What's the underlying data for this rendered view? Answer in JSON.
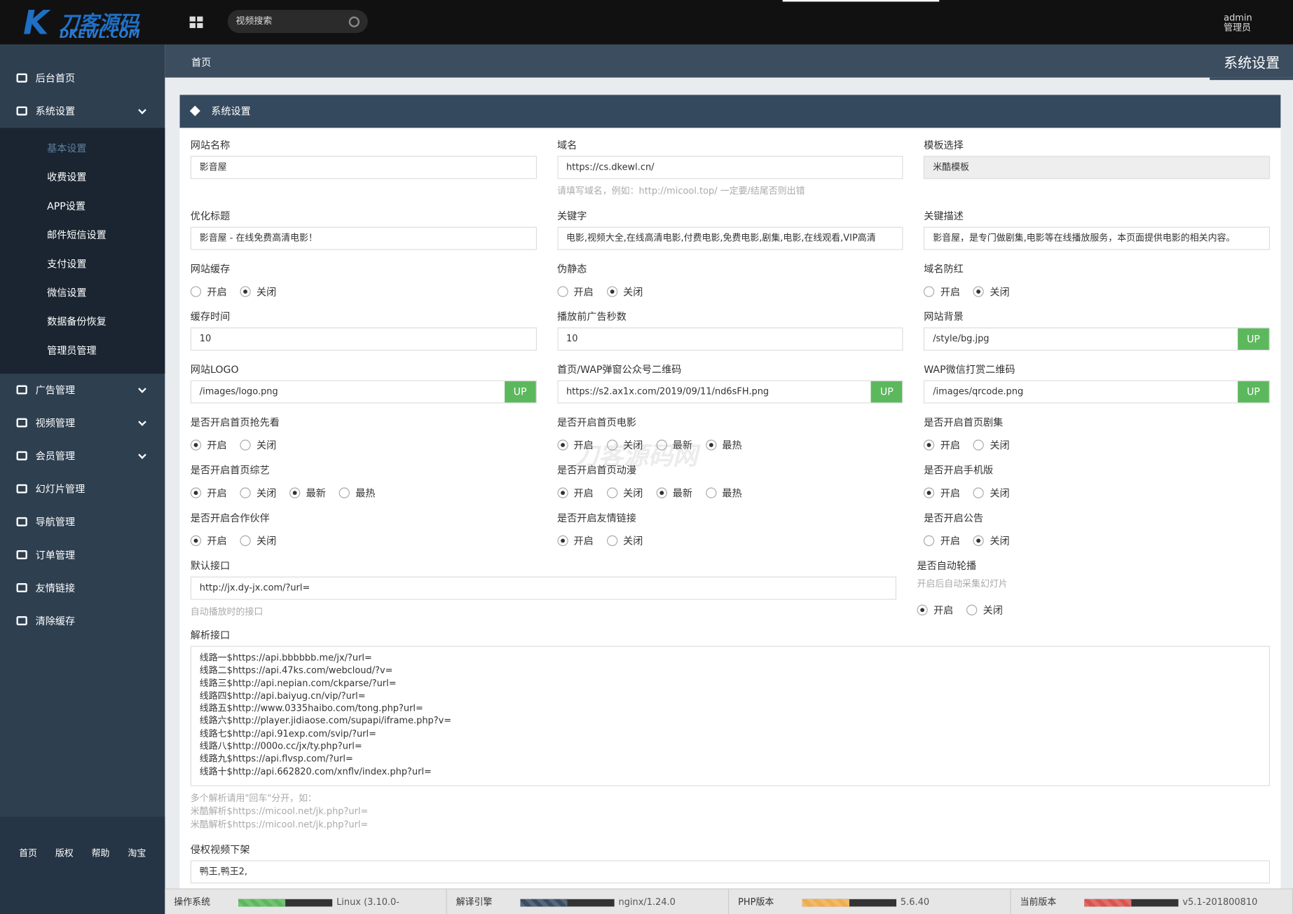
{
  "logo": {
    "text": "刀客源码",
    "sub": "DKEWL.COM"
  },
  "search_placeholder": "视频搜索",
  "user": {
    "name": "admin",
    "role": "管理员"
  },
  "sidebar": {
    "menu": [
      {
        "label": "后台首页"
      },
      {
        "label": "系统设置",
        "expanded": true,
        "children": [
          {
            "label": "基本设置",
            "active": true
          },
          {
            "label": "收费设置"
          },
          {
            "label": "APP设置"
          },
          {
            "label": "邮件短信设置"
          },
          {
            "label": "支付设置"
          },
          {
            "label": "微信设置"
          },
          {
            "label": "数据备份恢复"
          },
          {
            "label": "管理员管理"
          }
        ]
      },
      {
        "label": "广告管理",
        "expandable": true
      },
      {
        "label": "视频管理",
        "expandable": true
      },
      {
        "label": "会员管理",
        "expandable": true
      },
      {
        "label": "幻灯片管理"
      },
      {
        "label": "导航管理"
      },
      {
        "label": "订单管理"
      },
      {
        "label": "友情链接"
      },
      {
        "label": "清除缓存"
      }
    ],
    "footer_links": [
      "首页",
      "版权",
      "帮助",
      "淘宝"
    ]
  },
  "breadcrumb": "首页",
  "page_title": "系统设置",
  "panel_title": "系统设置",
  "watermark": "刀客源码网",
  "rows": [
    [
      {
        "label": "网站名称",
        "kind": "text",
        "value": "影音屋"
      },
      {
        "label": "域名",
        "kind": "text",
        "value": "https://cs.dkewl.cn/",
        "hint": "请填写域名，例如：http://micool.top/ 一定要/结尾否则出错"
      },
      {
        "label": "模板选择",
        "kind": "select",
        "value": "米酷模板"
      }
    ],
    [
      {
        "label": "优化标题",
        "kind": "text",
        "value": "影音屋 - 在线免费高清电影！"
      },
      {
        "label": "关键字",
        "kind": "text",
        "value": "电影,视频大全,在线高清电影,付费电影,免费电影,剧集,电影,在线观看,VIP高清"
      },
      {
        "label": "关键描述",
        "kind": "text",
        "value": "影音屋，是专门做剧集,电影等在线播放服务，本页面提供电影的相关内容。"
      }
    ],
    [
      {
        "label": "网站缓存",
        "kind": "radio",
        "options": [
          {
            "label": "开启",
            "checked": false
          },
          {
            "label": "关闭",
            "checked": true
          }
        ]
      },
      {
        "label": "伪静态",
        "kind": "radio",
        "options": [
          {
            "label": "开启",
            "checked": false
          },
          {
            "label": "关闭",
            "checked": true
          }
        ]
      },
      {
        "label": "域名防红",
        "kind": "radio",
        "options": [
          {
            "label": "开启",
            "checked": false
          },
          {
            "label": "关闭",
            "checked": true
          }
        ]
      }
    ],
    [
      {
        "label": "缓存时间",
        "kind": "text",
        "value": "10"
      },
      {
        "label": "播放前广告秒数",
        "kind": "text",
        "value": "10"
      },
      {
        "label": "网站背景",
        "kind": "text",
        "value": "/style/bg.jpg",
        "button": "UP"
      }
    ],
    [
      {
        "label": "网站LOGO",
        "kind": "text",
        "value": "/images/logo.png",
        "button": "UP"
      },
      {
        "label": "首页/WAP弹窗公众号二维码",
        "kind": "text",
        "value": "https://s2.ax1x.com/2019/09/11/nd6sFH.png",
        "button": "UP"
      },
      {
        "label": "WAP微信打赏二维码",
        "kind": "text",
        "value": "/images/qrcode.png",
        "button": "UP"
      }
    ],
    [
      {
        "label": "是否开启首页抢先看",
        "kind": "radio",
        "options": [
          {
            "label": "开启",
            "checked": true
          },
          {
            "label": "关闭",
            "checked": false
          }
        ]
      },
      {
        "label": "是否开启首页电影",
        "kind": "radio",
        "options": [
          {
            "label": "开启",
            "checked": true
          },
          {
            "label": "关闭",
            "checked": false
          },
          {
            "label": "最新",
            "checked": false
          },
          {
            "label": "最热",
            "checked": true
          }
        ]
      },
      {
        "label": "是否开启首页剧集",
        "kind": "radio",
        "options": [
          {
            "label": "开启",
            "checked": true
          },
          {
            "label": "关闭",
            "checked": false
          }
        ]
      }
    ],
    [
      {
        "label": "是否开启首页综艺",
        "kind": "radio",
        "options": [
          {
            "label": "开启",
            "checked": true
          },
          {
            "label": "关闭",
            "checked": false
          },
          {
            "label": "最新",
            "checked": true
          },
          {
            "label": "最热",
            "checked": false
          }
        ]
      },
      {
        "label": "是否开启首页动漫",
        "kind": "radio",
        "options": [
          {
            "label": "开启",
            "checked": true
          },
          {
            "label": "关闭",
            "checked": false
          },
          {
            "label": "最新",
            "checked": true
          },
          {
            "label": "最热",
            "checked": false
          }
        ]
      },
      {
        "label": "是否开启手机版",
        "kind": "radio",
        "options": [
          {
            "label": "开启",
            "checked": true
          },
          {
            "label": "关闭",
            "checked": false
          }
        ]
      }
    ],
    [
      {
        "label": "是否开启合作伙伴",
        "kind": "radio",
        "options": [
          {
            "label": "开启",
            "checked": true
          },
          {
            "label": "关闭",
            "checked": false
          }
        ]
      },
      {
        "label": "是否开启友情链接",
        "kind": "radio",
        "options": [
          {
            "label": "开启",
            "checked": true
          },
          {
            "label": "关闭",
            "checked": false
          }
        ]
      },
      {
        "label": "是否开启公告",
        "kind": "radio",
        "options": [
          {
            "label": "开启",
            "checked": false
          },
          {
            "label": "关闭",
            "checked": true
          }
        ]
      }
    ],
    [
      {
        "label": "默认接口",
        "kind": "text",
        "value": "http://jx.dy-jx.com/?url=",
        "hint": "自动播放时的接口"
      },
      {
        "label": "是否自动轮播",
        "kind": "radio",
        "hint": "开启后自动采集幻灯片",
        "options": [
          {
            "label": "开启",
            "checked": true
          },
          {
            "label": "关闭",
            "checked": false
          }
        ]
      }
    ],
    [
      {
        "label": "解析接口",
        "kind": "textarea",
        "lines": [
          "线路一$https://api.bbbbbb.me/jx/?url=",
          "线路二$https://api.47ks.com/webcloud/?v=",
          "线路三$http://api.nepian.com/ckparse/?url=",
          "线路四$http://api.baiyug.cn/vip/?url=",
          "线路五$http://www.0335haibo.com/tong.php?url=",
          "线路六$http://player.jidiaose.com/supapi/iframe.php?v=",
          "线路七$http://api.91exp.com/svip/?url=",
          "线路八$http://000o.cc/jx/ty.php?url=",
          "线路九$https://api.flvsp.com/?url=",
          "线路十$http://api.662820.com/xnflv/index.php?url="
        ],
        "hint_lines": [
          "多个解析请用\"回车\"分开，如：",
          "米酷解析$https://micool.net/jk.php?url=",
          "米酷解析$https://micool.net/jk.php?url="
        ]
      }
    ],
    [
      {
        "label": "侵权视频下架",
        "kind": "text",
        "value": "鸭王,鸭王2,"
      }
    ]
  ],
  "status": [
    {
      "label": "操作系统",
      "value": "Linux (3.10.0-",
      "color": "#5cb85c"
    },
    {
      "label": "解译引擎",
      "value": "nginx/1.24.0",
      "color": "#3a4d63"
    },
    {
      "label": "PHP版本",
      "value": "5.6.40",
      "color": "#f0ad4e"
    },
    {
      "label": "当前版本",
      "value": "v5.1-201800810",
      "color": "#d9534f"
    }
  ]
}
